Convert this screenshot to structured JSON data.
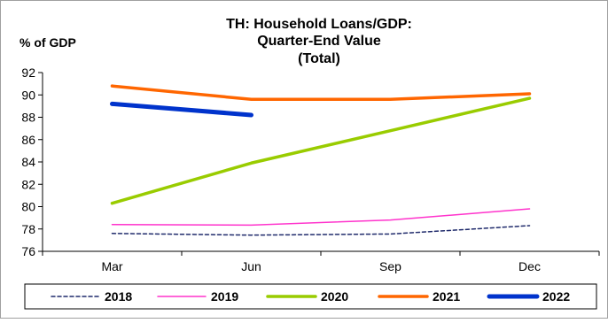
{
  "chart_data": {
    "type": "line",
    "title_lines": [
      "TH: Household Loans/GDP:",
      "Quarter-End Value",
      "(Total)"
    ],
    "ylabel": "% of GDP",
    "xlabel": "",
    "categories": [
      "Mar",
      "Jun",
      "Sep",
      "Dec"
    ],
    "ylim": [
      76,
      92
    ],
    "yticks": [
      76,
      78,
      80,
      82,
      84,
      86,
      88,
      90,
      92
    ],
    "grid": false,
    "legend_position": "bottom",
    "series": [
      {
        "name": "2018",
        "color": "#1f2a6b",
        "style": "dashed",
        "values": [
          77.6,
          77.45,
          77.55,
          78.3
        ]
      },
      {
        "name": "2019",
        "color": "#ff33cc",
        "style": "solid",
        "values": [
          78.4,
          78.35,
          78.8,
          79.8
        ]
      },
      {
        "name": "2020",
        "color": "#99cc00",
        "style": "solid",
        "values": [
          80.3,
          83.9,
          86.8,
          89.7
        ]
      },
      {
        "name": "2021",
        "color": "#ff6600",
        "style": "solid",
        "values": [
          90.8,
          89.6,
          89.6,
          90.1
        ]
      },
      {
        "name": "2022",
        "color": "#0033cc",
        "style": "solid",
        "values": [
          89.2,
          88.2,
          null,
          null
        ]
      }
    ]
  }
}
